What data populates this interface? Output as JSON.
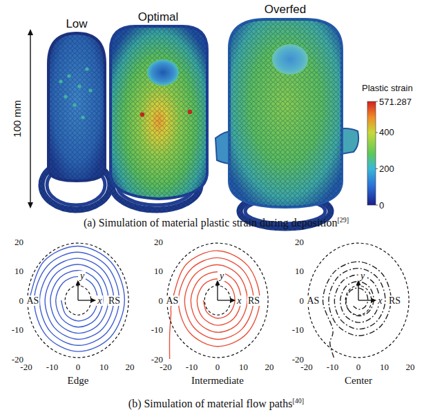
{
  "figure_a": {
    "labels": [
      "Low",
      "Optimal",
      "Overfed"
    ],
    "scale_bar": {
      "label": "100 mm",
      "length": 100
    },
    "colorbar": {
      "title": "Plastic strain",
      "range": [
        0,
        571.287
      ],
      "ticks": [
        0,
        200,
        400,
        571.287
      ]
    },
    "caption": {
      "text": "(a) Simulation of material plastic strain during deposition",
      "ref": "[29]"
    }
  },
  "chart_data": [
    {
      "type": "line",
      "title": "Edge",
      "xlim": [
        -20,
        20
      ],
      "ylim": [
        -20,
        20
      ],
      "xticks": [
        -20,
        -10,
        0,
        10,
        20
      ],
      "yticks": [
        -20,
        -10,
        0,
        10,
        20
      ],
      "xlabel": "x",
      "ylabel": "y",
      "annotations": [
        {
          "text": "AS",
          "x": -17.5,
          "y": 0
        },
        {
          "text": "RS",
          "x": 14,
          "y": 0
        }
      ],
      "circles": [
        {
          "radius": 19.5,
          "line_style": "dashed"
        },
        {
          "radius": 5,
          "line_style": "dashed"
        }
      ],
      "series": [
        {
          "color": "#3f5fcf",
          "line_style": "solid",
          "x": [
            -19,
            -13.25,
            0,
            12.88,
            17.96,
            12.51,
            0,
            -12.15,
            -16.92,
            -11.78,
            0,
            11.41,
            15.88,
            11.04,
            0,
            -10.68,
            -14.84,
            -10.31,
            0,
            9.94,
            13.8,
            9.57,
            0,
            -9.21,
            -12.76,
            -8.84,
            0,
            8.47,
            11.72,
            8.1,
            0,
            -7.73,
            -10.68,
            -7.37,
            0,
            7,
            9.64,
            6.63,
            0,
            -6.26,
            -8.6,
            -5.9,
            0,
            5.53,
            7.56,
            5.16,
            0,
            -4.79,
            -6.52
          ],
          "y": [
            0,
            13.25,
            18.48,
            12.88,
            0,
            -12.51,
            -17.44,
            -12.15,
            0,
            11.78,
            16.4,
            11.41,
            0,
            -11.04,
            -15.36,
            -10.68,
            0,
            10.31,
            14.32,
            9.94,
            0,
            -9.57,
            -13.28,
            -9.21,
            0,
            8.84,
            12.24,
            8.47,
            0,
            -8.1,
            -11.2,
            -7.73,
            0,
            7.37,
            10.16,
            7,
            0,
            -6.63,
            -9.12,
            -6.26,
            0,
            5.9,
            8.08,
            5.53,
            0,
            -5.16,
            -7.04,
            -4.79,
            0
          ]
        }
      ]
    },
    {
      "type": "line",
      "title": "Intermediate",
      "xlim": [
        -20,
        20
      ],
      "ylim": [
        -20,
        20
      ],
      "xticks": [
        -20,
        -10,
        0,
        10,
        20
      ],
      "yticks": [
        -20,
        -10,
        0,
        10,
        20
      ],
      "xlabel": "x",
      "ylabel": "y",
      "annotations": [
        {
          "text": "AS",
          "x": -17.5,
          "y": 0
        },
        {
          "text": "RS",
          "x": 14,
          "y": 0
        }
      ],
      "circles": [
        {
          "radius": 19.5,
          "line_style": "dashed"
        },
        {
          "radius": 5,
          "line_style": "dashed"
        }
      ],
      "series": [
        {
          "color": "#e8503a",
          "line_style": "solid",
          "x": [
            -18.5,
            -18.5,
            -18,
            -17.5,
            -12.16,
            0,
            11.74,
            16.3,
            11.31,
            0,
            -10.89,
            -15.1,
            -10.46,
            0,
            10.04,
            13.9,
            9.62,
            0,
            -9.19,
            -12.7,
            -8.77,
            0,
            8.34,
            11.5,
            7.92,
            0,
            -7.49,
            -10.3,
            -7.07,
            0,
            6.65,
            9.1,
            6.22,
            0,
            -5.8,
            -7.9,
            -5.37,
            0,
            4.95,
            6.7,
            4.53,
            0,
            -4.1,
            -5.5
          ],
          "y": [
            -20,
            -12,
            -5,
            0,
            12.16,
            16.9,
            11.74,
            0,
            -11.31,
            -15.7,
            -10.89,
            0,
            10.46,
            14.5,
            10.04,
            0,
            -9.62,
            -13.3,
            -9.19,
            0,
            8.77,
            12.1,
            8.34,
            0,
            -7.92,
            -10.9,
            -7.49,
            0,
            7.07,
            9.7,
            6.65,
            0,
            -6.22,
            -8.5,
            -5.8,
            0,
            5.37,
            7.3,
            4.95,
            0,
            -4.53,
            -6.1,
            -4.1,
            0
          ]
        }
      ]
    },
    {
      "type": "line",
      "title": "Center",
      "xlim": [
        -20,
        20
      ],
      "ylim": [
        -20,
        20
      ],
      "xticks": [
        -20,
        -10,
        0,
        10,
        20
      ],
      "yticks": [
        -20,
        -10,
        0,
        10,
        20
      ],
      "xlabel": "x",
      "ylabel": "y",
      "annotations": [
        {
          "text": "AS",
          "x": -17.5,
          "y": 0
        },
        {
          "text": "RS",
          "x": 14,
          "y": 0
        }
      ],
      "circles": [
        {
          "radius": 19.5,
          "line_style": "dashed"
        },
        {
          "radius": 5,
          "line_style": "dashed"
        }
      ],
      "series": [
        {
          "color": "#222222",
          "line_style": "dashdot",
          "x": [
            -9.5,
            -11,
            -9.9,
            -13.72,
            -9.5,
            0,
            9.11,
            12.6,
            8.71,
            0,
            -8.32,
            -11.48,
            -7.92,
            0,
            7.52,
            10.36,
            7.13,
            0,
            -6.73,
            -9.24,
            -6.34,
            0,
            5.94,
            8.12,
            5.54,
            0,
            -5.15,
            -7,
            -4.75,
            0,
            4.36,
            5.88,
            3.96,
            0,
            -3.56,
            -4.76,
            -3.17,
            0,
            2.77,
            3.64,
            2.38,
            0,
            -1.98
          ],
          "y": [
            -19.5,
            -14.5,
            -9.9,
            0,
            9.5,
            13.16,
            9.11,
            0,
            -8.71,
            -12.04,
            -8.32,
            0,
            7.92,
            10.92,
            7.52,
            0,
            -7.13,
            -9.8,
            -6.73,
            0,
            6.34,
            8.68,
            5.94,
            0,
            -5.54,
            -7.56,
            -5.15,
            0,
            4.75,
            6.44,
            4.36,
            0,
            -3.96,
            -5.32,
            -3.56,
            0,
            3.17,
            4.2,
            2.77,
            0,
            -2.38,
            -3.08,
            -1.98
          ]
        }
      ]
    }
  ],
  "figure_b_caption": {
    "text": "(b) Simulation of material flow paths",
    "ref": "[40]"
  }
}
